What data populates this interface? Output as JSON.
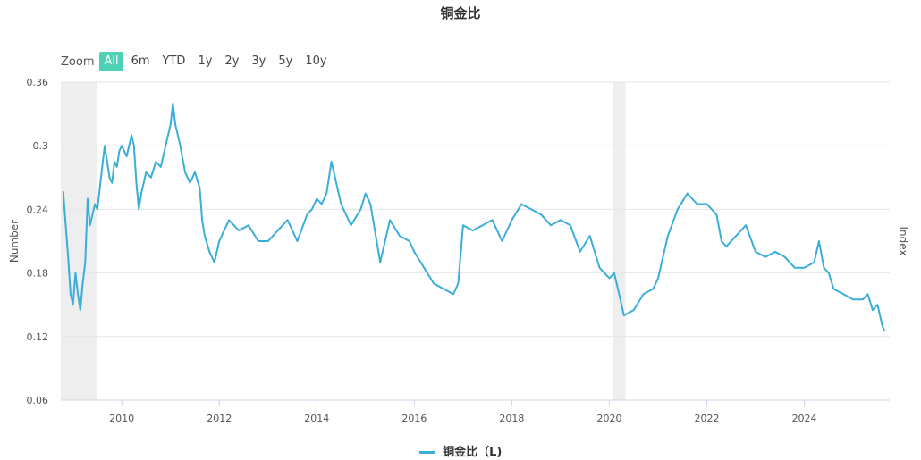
{
  "title": "铜金比",
  "zoom": {
    "label": "Zoom",
    "buttons": [
      "All",
      "6m",
      "YTD",
      "1y",
      "2y",
      "3y",
      "5y",
      "10y"
    ],
    "active": "All"
  },
  "legend": {
    "label": "铜金比（L)"
  },
  "colors": {
    "line": "#3aaed8",
    "shade": "#eeeeee",
    "zoom_active": "#4fd1b5",
    "grid": "#e6e6e6"
  },
  "chart_data": {
    "type": "line",
    "title": "铜金比",
    "ylabel": "Number",
    "y2label": "Index",
    "ylim": [
      0.06,
      0.36
    ],
    "yticks": [
      0.06,
      0.12,
      0.18,
      0.24,
      0.3,
      0.36
    ],
    "ytick_labels": [
      "0.06",
      "0.12",
      "0.18",
      "0.24",
      "0.3",
      "0.36"
    ],
    "xlim": [
      2008.75,
      2025.75
    ],
    "xticks": [
      2010,
      2012,
      2014,
      2016,
      2018,
      2020,
      2022,
      2024
    ],
    "xtick_labels": [
      "2010",
      "2012",
      "2014",
      "2016",
      "2018",
      "2020",
      "2022",
      "2024"
    ],
    "grid": true,
    "legend_position": "bottom-center",
    "shaded_ranges": [
      [
        2008.75,
        2009.5
      ],
      [
        2020.08,
        2020.33
      ]
    ],
    "series": [
      {
        "name": "铜金比（L)",
        "x": [
          2008.8,
          2008.85,
          2008.9,
          2008.95,
          2009.0,
          2009.05,
          2009.1,
          2009.15,
          2009.2,
          2009.25,
          2009.3,
          2009.35,
          2009.4,
          2009.45,
          2009.5,
          2009.55,
          2009.6,
          2009.65,
          2009.7,
          2009.75,
          2009.8,
          2009.85,
          2009.9,
          2009.95,
          2010.0,
          2010.1,
          2010.2,
          2010.25,
          2010.3,
          2010.35,
          2010.4,
          2010.5,
          2010.6,
          2010.7,
          2010.8,
          2010.9,
          2011.0,
          2011.05,
          2011.1,
          2011.2,
          2011.3,
          2011.4,
          2011.5,
          2011.6,
          2011.65,
          2011.7,
          2011.8,
          2011.9,
          2012.0,
          2012.2,
          2012.4,
          2012.6,
          2012.8,
          2013.0,
          2013.2,
          2013.4,
          2013.6,
          2013.8,
          2013.9,
          2014.0,
          2014.1,
          2014.2,
          2014.3,
          2014.5,
          2014.7,
          2014.9,
          2015.0,
          2015.1,
          2015.3,
          2015.5,
          2015.7,
          2015.9,
          2016.0,
          2016.2,
          2016.4,
          2016.6,
          2016.8,
          2016.9,
          2017.0,
          2017.2,
          2017.4,
          2017.6,
          2017.8,
          2018.0,
          2018.2,
          2018.4,
          2018.6,
          2018.8,
          2019.0,
          2019.2,
          2019.4,
          2019.6,
          2019.8,
          2020.0,
          2020.1,
          2020.2,
          2020.3,
          2020.5,
          2020.7,
          2020.9,
          2021.0,
          2021.1,
          2021.2,
          2021.4,
          2021.6,
          2021.8,
          2022.0,
          2022.2,
          2022.3,
          2022.4,
          2022.6,
          2022.8,
          2023.0,
          2023.2,
          2023.4,
          2023.6,
          2023.8,
          2024.0,
          2024.2,
          2024.3,
          2024.4,
          2024.5,
          2024.6,
          2024.8,
          2025.0,
          2025.2,
          2025.3,
          2025.4,
          2025.5,
          2025.6,
          2025.65
        ],
        "values": [
          0.257,
          0.225,
          0.195,
          0.16,
          0.15,
          0.18,
          0.16,
          0.145,
          0.17,
          0.19,
          0.25,
          0.225,
          0.235,
          0.245,
          0.24,
          0.26,
          0.28,
          0.3,
          0.285,
          0.27,
          0.265,
          0.285,
          0.28,
          0.295,
          0.3,
          0.29,
          0.31,
          0.3,
          0.265,
          0.24,
          0.255,
          0.275,
          0.27,
          0.285,
          0.28,
          0.3,
          0.32,
          0.34,
          0.32,
          0.3,
          0.275,
          0.265,
          0.275,
          0.26,
          0.23,
          0.215,
          0.2,
          0.19,
          0.21,
          0.23,
          0.22,
          0.225,
          0.21,
          0.21,
          0.22,
          0.23,
          0.21,
          0.235,
          0.24,
          0.25,
          0.245,
          0.255,
          0.285,
          0.245,
          0.225,
          0.24,
          0.255,
          0.245,
          0.19,
          0.23,
          0.215,
          0.21,
          0.2,
          0.185,
          0.17,
          0.165,
          0.16,
          0.17,
          0.225,
          0.22,
          0.225,
          0.23,
          0.21,
          0.23,
          0.245,
          0.24,
          0.235,
          0.225,
          0.23,
          0.225,
          0.2,
          0.215,
          0.185,
          0.175,
          0.18,
          0.16,
          0.14,
          0.145,
          0.16,
          0.165,
          0.175,
          0.195,
          0.215,
          0.24,
          0.255,
          0.245,
          0.245,
          0.235,
          0.21,
          0.205,
          0.215,
          0.225,
          0.2,
          0.195,
          0.2,
          0.195,
          0.185,
          0.185,
          0.19,
          0.21,
          0.185,
          0.18,
          0.165,
          0.16,
          0.155,
          0.155,
          0.16,
          0.145,
          0.15,
          0.13,
          0.125
        ]
      }
    ]
  }
}
